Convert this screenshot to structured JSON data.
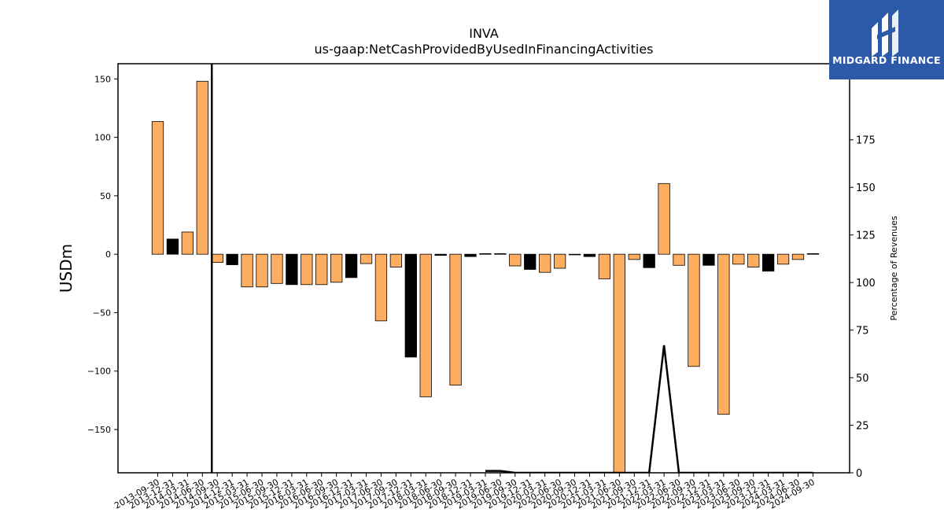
{
  "chart_data": {
    "type": "bar",
    "title": "INVA",
    "subtitle": "us-gaap:NetCashProvidedByUsedInFinancingActivities",
    "ylabel": "USDm",
    "ylabel_right": "Percentage of Revenues",
    "ylim": [
      -187,
      163
    ],
    "ylim_right": [
      0,
      215
    ],
    "yticks": [
      -150,
      -100,
      -50,
      0,
      50,
      100,
      150
    ],
    "yticks_right": [
      0,
      25,
      50,
      75,
      100,
      125,
      150,
      175
    ],
    "categories": [
      "2013-09-30",
      "2013-12-31",
      "2014-03-31",
      "2014-06-30",
      "2014-09-30",
      "2014-12-31",
      "2015-03-31",
      "2015-06-30",
      "2015-09-30",
      "2015-12-31",
      "2016-03-31",
      "2016-06-30",
      "2016-09-30",
      "2016-12-31",
      "2017-03-31",
      "2017-06-30",
      "2017-09-30",
      "2017-12-31",
      "2018-03-31",
      "2018-06-30",
      "2018-09-30",
      "2018-12-31",
      "2019-03-31",
      "2019-06-30",
      "2019-09-30",
      "2019-12-31",
      "2020-03-31",
      "2020-06-30",
      "2020-09-30",
      "2020-12-31",
      "2021-03-31",
      "2021-06-30",
      "2021-09-30",
      "2021-12-31",
      "2022-03-31",
      "2022-06-30",
      "2022-09-30",
      "2022-12-31",
      "2023-03-31",
      "2023-06-30",
      "2023-09-30",
      "2023-12-31",
      "2024-03-31",
      "2024-06-30",
      "2024-09-30"
    ],
    "series": [
      {
        "values": [
          113.5,
          13,
          19,
          148,
          -7,
          -9,
          -28,
          -28,
          -25,
          -26,
          -26,
          -26,
          -24,
          -20,
          -8,
          -57,
          -11,
          -88,
          -122,
          -1,
          -112,
          -2,
          0.5,
          0.5,
          -10,
          -13,
          -15.5,
          -12,
          -0.5,
          -2,
          -21,
          -190,
          -4.5,
          -11.5,
          60.5,
          -9.5,
          -96,
          -9.5,
          -137,
          -8.5,
          -11,
          -14.5,
          -8.5,
          -4.5,
          0.5
        ],
        "colors": [
          "#fdae61",
          "#000000",
          "#fdae61",
          "#fdae61",
          "#fdae61",
          "#000000",
          "#fdae61",
          "#fdae61",
          "#fdae61",
          "#000000",
          "#fdae61",
          "#fdae61",
          "#fdae61",
          "#000000",
          "#fdae61",
          "#fdae61",
          "#fdae61",
          "#000000",
          "#fdae61",
          "#000000",
          "#fdae61",
          "#000000",
          "#000000",
          "#000000",
          "#fdae61",
          "#000000",
          "#fdae61",
          "#fdae61",
          "#000000",
          "#000000",
          "#fdae61",
          "#fdae61",
          "#fdae61",
          "#000000",
          "#fdae61",
          "#fdae61",
          "#fdae61",
          "#000000",
          "#fdae61",
          "#fdae61",
          "#fdae61",
          "#000000",
          "#fdae61",
          "#fdae61",
          "#000000"
        ]
      },
      {
        "axis": "right",
        "type": "line",
        "values": [
          null,
          null,
          null,
          null,
          null,
          null,
          null,
          null,
          null,
          null,
          null,
          null,
          null,
          null,
          null,
          null,
          null,
          null,
          null,
          null,
          null,
          null,
          1,
          1,
          0,
          0,
          0,
          0,
          0,
          0,
          0,
          0,
          0,
          0,
          67,
          0,
          0,
          0,
          0,
          0,
          0,
          0,
          0,
          0,
          0
        ]
      }
    ],
    "vline_category": "2014-09-30",
    "colors": {
      "orange": "#fdae61",
      "black": "#000000"
    }
  },
  "logo": {
    "text": "MIDGARD FINANCE",
    "background": "#2c5aa8"
  }
}
